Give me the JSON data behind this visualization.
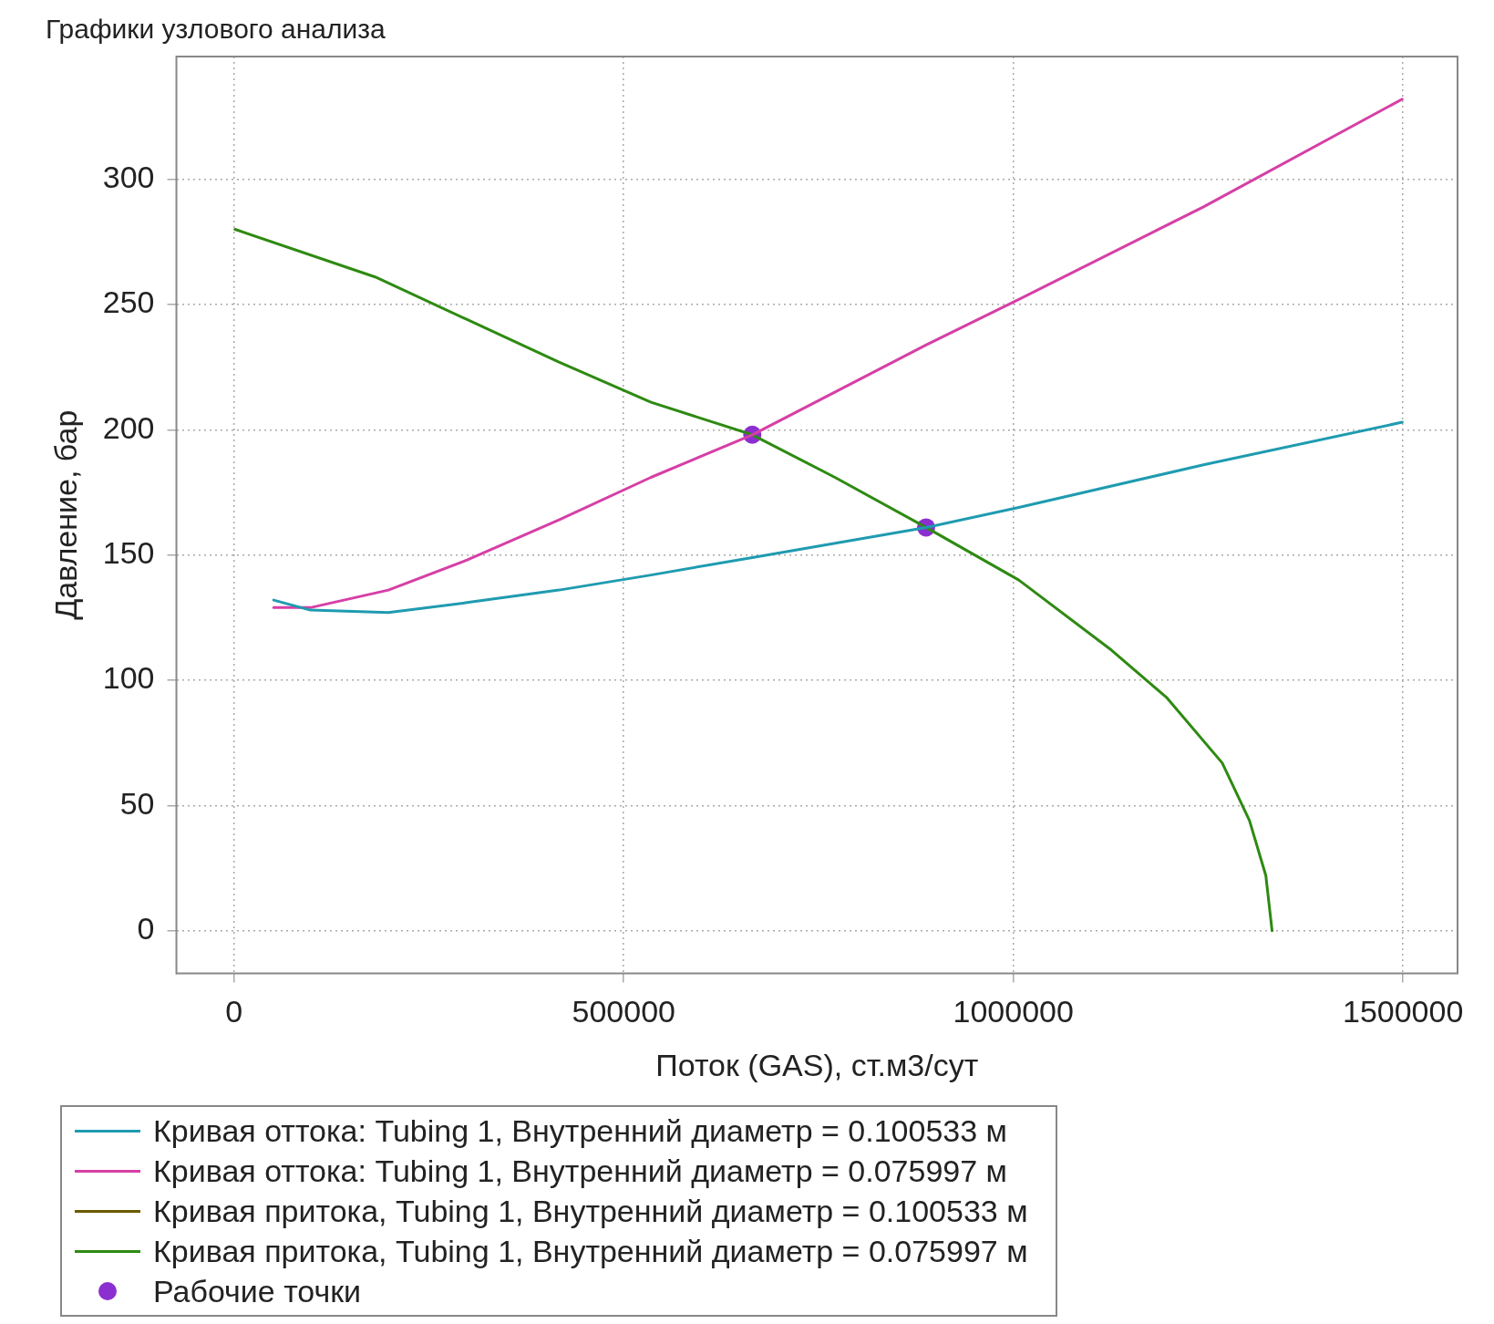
{
  "chart_data": {
    "type": "line",
    "title": "Графики узлового анализа",
    "xlabel": "Поток (GAS), ст.м3/сут",
    "ylabel": "Давление, бар",
    "xlim": [
      -74000,
      1570000
    ],
    "xticks": [
      0,
      500000,
      1000000,
      1500000
    ],
    "ylim": [
      -17,
      349
    ],
    "yticks": [
      0,
      50,
      100,
      150,
      200,
      250,
      300
    ],
    "grid": true,
    "legend": "bottom",
    "marker": "none",
    "line_style": "solid",
    "series": [
      {
        "name": "Кривая оттока: Tubing 1, Внутренний диаметр = 0.100533 м",
        "color": "#1f9bb0",
        "x": [
          50800,
          98000,
          198000,
          299000,
          417000,
          535000,
          665000,
          888000,
          1007000,
          1244000,
          1499000
        ],
        "values": [
          132,
          128,
          127,
          131,
          136,
          142,
          149,
          161,
          169,
          186,
          203
        ]
      },
      {
        "name": "Кривая оттока: Tubing 1, Внутренний диаметр = 0.075997 м",
        "color": "#d63fa6",
        "x": [
          50800,
          98000,
          198000,
          299000,
          417000,
          535000,
          665000,
          889000,
          1007000,
          1244000,
          1499000
        ],
        "values": [
          129,
          129,
          136,
          148,
          164,
          181,
          198,
          234,
          252,
          289,
          332
        ]
      },
      {
        "name": "Кривая притока, Tubing 1, Внутренний диаметр = 0.100533 м",
        "color": "#6b5a00"
      },
      {
        "name": "Кривая притока, Tubing 1, Внутренний диаметр = 0.075997 м",
        "color": "#2e8a12",
        "x": [
          1200,
          181000,
          299000,
          417000,
          535000,
          665000,
          771000,
          888000,
          1007000,
          1126000,
          1197000,
          1268000,
          1303000,
          1324000,
          1332000
        ],
        "values": [
          280,
          261,
          244,
          227,
          211,
          198,
          181,
          161,
          140,
          112,
          93,
          67,
          44,
          22,
          0
        ]
      },
      {
        "name": "Рабочие точки",
        "type": "scatter",
        "marker": "circle",
        "color": "#8b2fd0",
        "x": [
          665000,
          888000
        ],
        "values": [
          198,
          161
        ]
      }
    ]
  }
}
